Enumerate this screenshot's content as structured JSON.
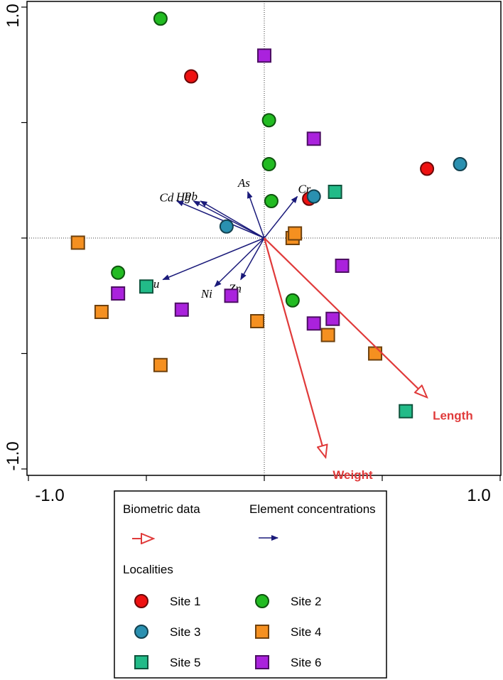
{
  "chart_data": {
    "type": "scatter",
    "subtype": "RDA triplot",
    "xlim": [
      -1.0,
      1.0
    ],
    "ylim": [
      -1.0,
      1.0
    ],
    "x_tick_labels": [
      "-1.0",
      "1.0"
    ],
    "y_tick_labels": [
      "1.0",
      "-1.0"
    ],
    "x_ticks": [
      -1.0,
      -0.5,
      0.0,
      0.5,
      1.0
    ],
    "y_ticks": [
      1.0,
      0.5,
      0.0,
      -0.5,
      -1.0
    ],
    "colors": {
      "biometric": "#e03a3a",
      "element": "#1a1a7a",
      "site1": "#ee1111",
      "site2": "#22bb22",
      "site3": "#2a90b0",
      "site4": "#f59020",
      "site5": "#22bb88",
      "site6": "#aa22dd"
    },
    "element_vectors": [
      {
        "name": "Hg",
        "x": -0.3,
        "y": 0.16
      },
      {
        "name": "Pb",
        "x": -0.27,
        "y": 0.16
      },
      {
        "name": "Cd",
        "x": -0.37,
        "y": 0.16
      },
      {
        "name": "As",
        "x": -0.07,
        "y": 0.2
      },
      {
        "name": "Cr",
        "x": 0.14,
        "y": 0.18
      },
      {
        "name": "Cu",
        "x": -0.43,
        "y": -0.18
      },
      {
        "name": "Ni",
        "x": -0.21,
        "y": -0.21
      },
      {
        "name": "Zn",
        "x": -0.1,
        "y": -0.18
      }
    ],
    "biometric_vectors": [
      {
        "name": "Length",
        "x": 0.69,
        "y": -0.69
      },
      {
        "name": "Weight",
        "x": 0.26,
        "y": -0.95
      }
    ],
    "series": [
      {
        "name": "Site 1",
        "marker": "circle",
        "points": [
          [
            -0.31,
            0.7
          ],
          [
            0.19,
            0.17
          ],
          [
            0.69,
            0.3
          ]
        ]
      },
      {
        "name": "Site 2",
        "marker": "circle",
        "points": [
          [
            -0.44,
            0.95
          ],
          [
            0.02,
            0.51
          ],
          [
            0.02,
            0.32
          ],
          [
            0.03,
            0.16
          ],
          [
            -0.62,
            -0.15
          ],
          [
            0.12,
            -0.27
          ]
        ]
      },
      {
        "name": "Site 3",
        "marker": "circle",
        "points": [
          [
            -0.16,
            0.05
          ],
          [
            0.21,
            0.18
          ],
          [
            0.83,
            0.32
          ]
        ]
      },
      {
        "name": "Site 4",
        "marker": "square",
        "points": [
          [
            -0.79,
            -0.02
          ],
          [
            0.12,
            0.0
          ],
          [
            0.13,
            0.02
          ],
          [
            -0.69,
            -0.32
          ],
          [
            -0.03,
            -0.36
          ],
          [
            0.27,
            -0.42
          ],
          [
            0.47,
            -0.5
          ],
          [
            -0.44,
            -0.55
          ]
        ]
      },
      {
        "name": "Site 5",
        "marker": "square",
        "points": [
          [
            0.3,
            0.2
          ],
          [
            -0.5,
            -0.21
          ],
          [
            0.6,
            -0.75
          ]
        ]
      },
      {
        "name": "Site 6",
        "marker": "square",
        "points": [
          [
            0.0,
            0.79
          ],
          [
            0.21,
            0.43
          ],
          [
            0.33,
            -0.12
          ],
          [
            -0.62,
            -0.24
          ],
          [
            -0.35,
            -0.31
          ],
          [
            -0.14,
            -0.25
          ],
          [
            0.21,
            -0.37
          ],
          [
            0.29,
            -0.35
          ]
        ]
      }
    ],
    "legend": {
      "placement": "bottom",
      "headers": {
        "biometric": "Biometric data",
        "elements": "Element concentrations",
        "localities": "Localities"
      },
      "items": [
        "Site 1",
        "Site 2",
        "Site 3",
        "Site 4",
        "Site 5",
        "Site 6"
      ]
    }
  }
}
